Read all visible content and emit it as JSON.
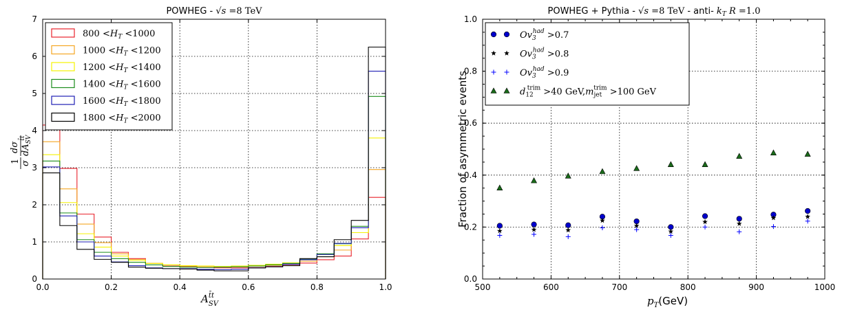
{
  "chart_data": [
    {
      "type": "step",
      "title": "POWHEG - √s =8 TeV",
      "xlabel": "A_SV^tt̄",
      "ylabel": "1/σ dσ/dA_SV^tt̄",
      "xlim": [
        0,
        1
      ],
      "ylim": [
        0,
        7
      ],
      "xticks": [
        "0.0",
        "0.2",
        "0.4",
        "0.6",
        "0.8",
        "1.0"
      ],
      "yticks": [
        "0",
        "1",
        "2",
        "3",
        "4",
        "5",
        "6",
        "7"
      ],
      "grid": true,
      "legend_position": "top-left",
      "bin_edges": [
        0,
        0.05,
        0.1,
        0.15,
        0.2,
        0.25,
        0.3,
        0.35,
        0.4,
        0.45,
        0.5,
        0.55,
        0.6,
        0.65,
        0.7,
        0.75,
        0.8,
        0.85,
        0.9,
        0.95,
        1.0
      ],
      "series": [
        {
          "name": "800 < H_T < 1000",
          "legend_parts": [
            "800",
            "<",
            "H",
            "T",
            "<",
            "1000"
          ],
          "color": "#e8222b",
          "values": [
            4.15,
            2.98,
            1.75,
            1.13,
            0.72,
            0.55,
            0.42,
            0.35,
            0.33,
            0.31,
            0.3,
            0.3,
            0.31,
            0.34,
            0.37,
            0.43,
            0.52,
            0.62,
            1.08,
            2.2
          ]
        },
        {
          "name": "1000 < H_T < 1200",
          "legend_parts": [
            "1000",
            "<",
            "H",
            "T",
            "<",
            "1200"
          ],
          "color": "#f5a623",
          "values": [
            3.7,
            2.43,
            1.48,
            0.98,
            0.68,
            0.53,
            0.42,
            0.38,
            0.35,
            0.34,
            0.33,
            0.33,
            0.35,
            0.37,
            0.4,
            0.48,
            0.6,
            0.78,
            1.25,
            2.95
          ]
        },
        {
          "name": "1200 < H_T < 1400",
          "legend_parts": [
            "1200",
            "<",
            "H",
            "T",
            "<",
            "1400"
          ],
          "color": "#f5f200",
          "values": [
            3.35,
            2.06,
            1.22,
            0.86,
            0.62,
            0.5,
            0.42,
            0.38,
            0.36,
            0.35,
            0.34,
            0.35,
            0.37,
            0.4,
            0.44,
            0.52,
            0.66,
            0.9,
            1.25,
            3.8
          ]
        },
        {
          "name": "1400 < H_T < 1600",
          "legend_parts": [
            "1400",
            "<",
            "H",
            "T",
            "<",
            "1600"
          ],
          "color": "#1a8c1a",
          "values": [
            3.18,
            1.78,
            1.06,
            0.72,
            0.55,
            0.45,
            0.38,
            0.34,
            0.32,
            0.31,
            0.32,
            0.33,
            0.35,
            0.38,
            0.42,
            0.53,
            0.68,
            0.95,
            1.42,
            4.92
          ]
        },
        {
          "name": "1600 < H_T < 1800",
          "legend_parts": [
            "1600",
            "<",
            "H",
            "T",
            "<",
            "1800"
          ],
          "color": "#1f1fb4",
          "values": [
            3.02,
            1.7,
            1.0,
            0.62,
            0.46,
            0.36,
            0.3,
            0.28,
            0.28,
            0.26,
            0.25,
            0.26,
            0.3,
            0.33,
            0.4,
            0.52,
            0.66,
            0.96,
            1.38,
            5.6
          ]
        },
        {
          "name": "1800 < H_T < 2000",
          "legend_parts": [
            "1800",
            "<",
            "H",
            "T",
            "<",
            "2000"
          ],
          "color": "#000000",
          "values": [
            2.86,
            1.44,
            0.8,
            0.53,
            0.45,
            0.32,
            0.29,
            0.28,
            0.27,
            0.24,
            0.22,
            0.22,
            0.3,
            0.33,
            0.36,
            0.55,
            0.6,
            1.06,
            1.58,
            6.25
          ]
        }
      ]
    },
    {
      "type": "scatter",
      "title": "POWHEG + Pythia - √s =8 TeV - anti-k_T R =1.0",
      "xlabel": "p_T(GeV)",
      "ylabel": "Fraction of asymmetric events",
      "xlim": [
        500,
        1000
      ],
      "ylim": [
        0.0,
        1.0
      ],
      "xticks": [
        "500",
        "600",
        "700",
        "800",
        "900",
        "1000"
      ],
      "yticks": [
        "0.0",
        "0.2",
        "0.4",
        "0.6",
        "0.8",
        "1.0"
      ],
      "grid": true,
      "legend_position": "top-left",
      "x": [
        525,
        575,
        625,
        675,
        725,
        775,
        825,
        875,
        925,
        975
      ],
      "series": [
        {
          "name": "Ov3^had > 0.7",
          "legend_parts": [
            "Ov",
            "3",
            "had",
            " >0.7"
          ],
          "marker": "circle",
          "color": "#0000cc",
          "values": [
            0.205,
            0.21,
            0.207,
            0.24,
            0.222,
            0.2,
            0.242,
            0.232,
            0.248,
            0.262
          ]
        },
        {
          "name": "Ov3^had > 0.8",
          "legend_parts": [
            "Ov",
            "3",
            "had",
            " >0.8"
          ],
          "marker": "star",
          "color": "#000000",
          "values": [
            0.185,
            0.19,
            0.188,
            0.225,
            0.205,
            0.183,
            0.22,
            0.213,
            0.235,
            0.24
          ]
        },
        {
          "name": "Ov3^had > 0.9",
          "legend_parts": [
            "Ov",
            "3",
            "had",
            " >0.9"
          ],
          "marker": "plus",
          "color": "#0000ff",
          "values": [
            0.168,
            0.172,
            0.163,
            0.197,
            0.19,
            0.168,
            0.2,
            0.182,
            0.202,
            0.223
          ]
        },
        {
          "name": "d12^trim > 40 GeV, m_jet^trim > 100 GeV",
          "legend_parts": [
            "d",
            "12",
            "trim",
            " >40 GeV,",
            "m",
            "jet",
            "trim",
            " >100 GeV"
          ],
          "marker": "triangle",
          "color": "#1a6b1a",
          "values": [
            0.35,
            0.378,
            0.396,
            0.413,
            0.425,
            0.44,
            0.44,
            0.472,
            0.485,
            0.48
          ]
        }
      ]
    }
  ]
}
